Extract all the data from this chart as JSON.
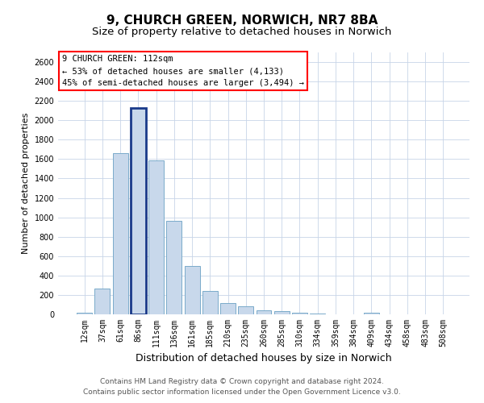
{
  "title1": "9, CHURCH GREEN, NORWICH, NR7 8BA",
  "title2": "Size of property relative to detached houses in Norwich",
  "xlabel": "Distribution of detached houses by size in Norwich",
  "ylabel": "Number of detached properties",
  "categories": [
    "12sqm",
    "37sqm",
    "61sqm",
    "86sqm",
    "111sqm",
    "136sqm",
    "161sqm",
    "185sqm",
    "210sqm",
    "235sqm",
    "260sqm",
    "285sqm",
    "310sqm",
    "334sqm",
    "359sqm",
    "384sqm",
    "409sqm",
    "434sqm",
    "458sqm",
    "483sqm",
    "508sqm"
  ],
  "values": [
    20,
    270,
    1660,
    2130,
    1590,
    960,
    500,
    245,
    115,
    85,
    40,
    35,
    20,
    5,
    2,
    2,
    18,
    2,
    2,
    2,
    2
  ],
  "highlight_index": 3,
  "bar_color": "#c8d8eb",
  "bar_edge_color": "#7aaaca",
  "highlight_edge_color": "#1a3a8a",
  "ylim": [
    0,
    2700
  ],
  "yticks": [
    0,
    200,
    400,
    600,
    800,
    1000,
    1200,
    1400,
    1600,
    1800,
    2000,
    2200,
    2400,
    2600
  ],
  "annotation_box_text": "9 CHURCH GREEN: 112sqm\n← 53% of detached houses are smaller (4,133)\n45% of semi-detached houses are larger (3,494) →",
  "footer1": "Contains HM Land Registry data © Crown copyright and database right 2024.",
  "footer2": "Contains public sector information licensed under the Open Government Licence v3.0.",
  "bg_color": "#ffffff",
  "grid_color": "#c8d4e8",
  "title1_fontsize": 11,
  "title2_fontsize": 9.5,
  "xlabel_fontsize": 9,
  "ylabel_fontsize": 8,
  "tick_fontsize": 7,
  "footer_fontsize": 6.5,
  "annot_fontsize": 7.5
}
